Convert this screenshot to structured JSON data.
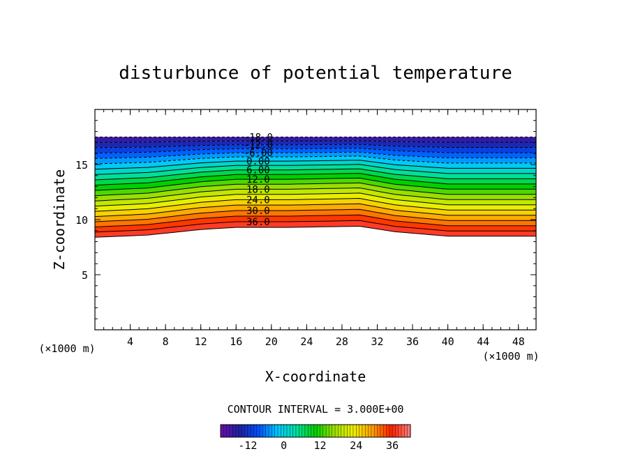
{
  "chart_data": {
    "type": "contour",
    "title": "disturbunce of potential temperature",
    "xlabel": "X-coordinate",
    "ylabel": "Z-coordinate",
    "x_unit": "(×1000 m)",
    "y_unit": "(×1000 m)",
    "xlim": [
      0,
      50
    ],
    "ylim": [
      0,
      20
    ],
    "x_ticks": [
      "4",
      "8",
      "12",
      "16",
      "20",
      "24",
      "28",
      "32",
      "36",
      "40",
      "44",
      "48"
    ],
    "y_ticks": [
      "5",
      "10",
      "15"
    ],
    "contour_interval_text": "CONTOUR INTERVAL = 3.000E+00",
    "contour_interval": 3.0,
    "levels": [
      -18,
      -15,
      -12,
      -9,
      -6,
      -3,
      0,
      3,
      6,
      9,
      12,
      15,
      18,
      21,
      24,
      27,
      30,
      33,
      36,
      39
    ],
    "contour_labels": [
      "-18.0",
      "-12.0",
      "-6.00",
      "0.00",
      "6.00",
      "12.0",
      "18.0",
      "24.0",
      "30.0",
      "36.0"
    ],
    "field_top_km": 17.5,
    "field_bottom_km": 8.5,
    "field_bottom_profile": [
      {
        "x": 0,
        "z": 8.4
      },
      {
        "x": 6,
        "z": 8.6
      },
      {
        "x": 12,
        "z": 9.1
      },
      {
        "x": 16,
        "z": 9.3
      },
      {
        "x": 22,
        "z": 9.3
      },
      {
        "x": 30,
        "z": 9.4
      },
      {
        "x": 34,
        "z": 8.9
      },
      {
        "x": 40,
        "z": 8.5
      },
      {
        "x": 50,
        "z": 8.5
      }
    ],
    "colorbar": {
      "ticks": [
        "-12",
        "0",
        "12",
        "24",
        "36"
      ],
      "min": -21,
      "max": 42
    },
    "colors": [
      "#6a0dad",
      "#2020a0",
      "#0050ff",
      "#00c8ff",
      "#00e0a0",
      "#00d000",
      "#a0e000",
      "#f0f000",
      "#ffa000",
      "#ff2000",
      "#ff8080"
    ]
  }
}
